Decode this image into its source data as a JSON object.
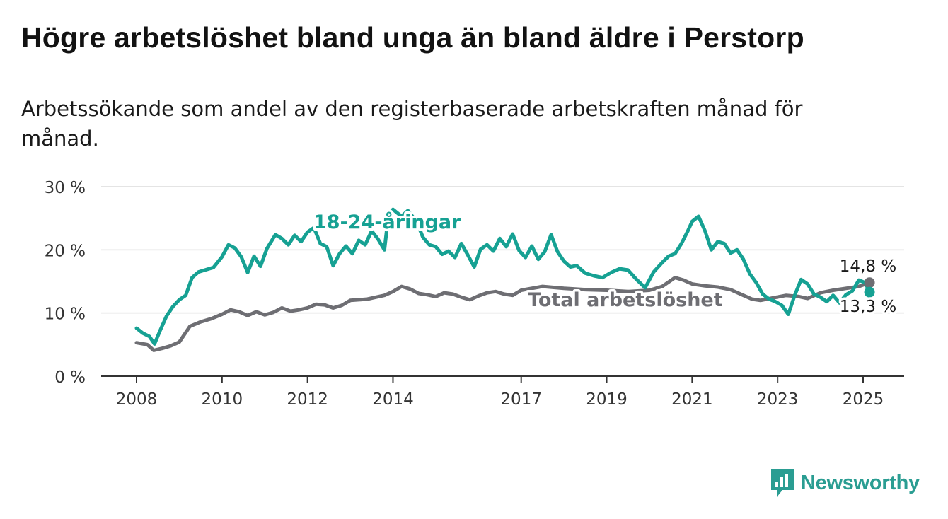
{
  "title": "Högre arbetslöshet bland unga än bland äldre i Perstorp",
  "subtitle": "Arbetssökande som andel av den registerbaserade arbetskraften månad för månad.",
  "brand": {
    "name": "Newsworthy",
    "color": "#2a9d92",
    "icon": "bar-chart-icon"
  },
  "chart_data": {
    "type": "line",
    "ylim": [
      0,
      30
    ],
    "y_ticks": [
      0,
      10,
      20,
      30
    ],
    "y_tick_labels": [
      "0 %",
      "10 %",
      "20 %",
      "30 %"
    ],
    "x_ticks": [
      2008,
      2010,
      2012,
      2014,
      2017,
      2019,
      2021,
      2023,
      2025
    ],
    "x_tick_labels": [
      "2008",
      "2010",
      "2012",
      "2014",
      "2017",
      "2019",
      "2021",
      "2023",
      "2025"
    ],
    "grid": true,
    "legend": "direct labels on lines",
    "series": [
      {
        "name": "Total arbetslöshet",
        "color": "#6e6e73",
        "last_label": "14,8 %",
        "points": [
          [
            2008.0,
            5.3
          ],
          [
            2008.25,
            5.0
          ],
          [
            2008.4,
            4.1
          ],
          [
            2008.6,
            4.4
          ],
          [
            2008.8,
            4.8
          ],
          [
            2009.0,
            5.4
          ],
          [
            2009.25,
            7.9
          ],
          [
            2009.5,
            8.6
          ],
          [
            2009.75,
            9.1
          ],
          [
            2010.0,
            9.8
          ],
          [
            2010.2,
            10.5
          ],
          [
            2010.4,
            10.2
          ],
          [
            2010.6,
            9.6
          ],
          [
            2010.8,
            10.2
          ],
          [
            2011.0,
            9.7
          ],
          [
            2011.2,
            10.1
          ],
          [
            2011.4,
            10.8
          ],
          [
            2011.6,
            10.3
          ],
          [
            2011.8,
            10.5
          ],
          [
            2012.0,
            10.8
          ],
          [
            2012.2,
            11.4
          ],
          [
            2012.4,
            11.3
          ],
          [
            2012.6,
            10.8
          ],
          [
            2012.8,
            11.2
          ],
          [
            2013.0,
            12.0
          ],
          [
            2013.2,
            12.1
          ],
          [
            2013.4,
            12.2
          ],
          [
            2013.6,
            12.5
          ],
          [
            2013.8,
            12.8
          ],
          [
            2014.0,
            13.4
          ],
          [
            2014.2,
            14.2
          ],
          [
            2014.4,
            13.8
          ],
          [
            2014.6,
            13.1
          ],
          [
            2014.8,
            12.9
          ],
          [
            2015.0,
            12.6
          ],
          [
            2015.2,
            13.2
          ],
          [
            2015.4,
            13.0
          ],
          [
            2015.6,
            12.5
          ],
          [
            2015.8,
            12.1
          ],
          [
            2016.0,
            12.7
          ],
          [
            2016.2,
            13.2
          ],
          [
            2016.4,
            13.4
          ],
          [
            2016.6,
            13.0
          ],
          [
            2016.8,
            12.8
          ],
          [
            2017.0,
            13.6
          ],
          [
            2017.5,
            14.2
          ],
          [
            2018.0,
            13.9
          ],
          [
            2018.5,
            13.7
          ],
          [
            2019.0,
            13.6
          ],
          [
            2019.5,
            13.4
          ],
          [
            2020.0,
            13.6
          ],
          [
            2020.3,
            14.2
          ],
          [
            2020.6,
            15.6
          ],
          [
            2020.8,
            15.2
          ],
          [
            2021.0,
            14.6
          ],
          [
            2021.3,
            14.3
          ],
          [
            2021.6,
            14.1
          ],
          [
            2021.9,
            13.7
          ],
          [
            2022.2,
            12.8
          ],
          [
            2022.4,
            12.2
          ],
          [
            2022.6,
            12.0
          ],
          [
            2022.9,
            12.4
          ],
          [
            2023.2,
            12.8
          ],
          [
            2023.5,
            12.6
          ],
          [
            2023.7,
            12.3
          ],
          [
            2024.0,
            13.2
          ],
          [
            2024.3,
            13.6
          ],
          [
            2024.6,
            13.9
          ],
          [
            2024.9,
            14.2
          ],
          [
            2025.15,
            14.8
          ]
        ]
      },
      {
        "name": "18-24-åringar",
        "color": "#16a193",
        "last_label": "13,3 %",
        "points": [
          [
            2008.0,
            7.6
          ],
          [
            2008.15,
            6.8
          ],
          [
            2008.3,
            6.3
          ],
          [
            2008.42,
            5.1
          ],
          [
            2008.55,
            7.2
          ],
          [
            2008.7,
            9.5
          ],
          [
            2008.85,
            11.0
          ],
          [
            2009.0,
            12.1
          ],
          [
            2009.15,
            12.8
          ],
          [
            2009.3,
            15.6
          ],
          [
            2009.45,
            16.5
          ],
          [
            2009.6,
            16.8
          ],
          [
            2009.8,
            17.2
          ],
          [
            2010.0,
            18.9
          ],
          [
            2010.15,
            20.8
          ],
          [
            2010.3,
            20.3
          ],
          [
            2010.45,
            18.9
          ],
          [
            2010.6,
            16.4
          ],
          [
            2010.75,
            19.0
          ],
          [
            2010.9,
            17.4
          ],
          [
            2011.05,
            20.2
          ],
          [
            2011.25,
            22.4
          ],
          [
            2011.4,
            21.8
          ],
          [
            2011.55,
            20.8
          ],
          [
            2011.7,
            22.3
          ],
          [
            2011.85,
            21.3
          ],
          [
            2012.0,
            22.8
          ],
          [
            2012.15,
            23.5
          ],
          [
            2012.3,
            21.0
          ],
          [
            2012.45,
            20.5
          ],
          [
            2012.6,
            17.5
          ],
          [
            2012.75,
            19.4
          ],
          [
            2012.9,
            20.6
          ],
          [
            2013.05,
            19.4
          ],
          [
            2013.2,
            21.5
          ],
          [
            2013.35,
            20.8
          ],
          [
            2013.5,
            23.0
          ],
          [
            2013.65,
            21.7
          ],
          [
            2013.8,
            20.0
          ],
          [
            2013.9,
            25.8
          ],
          [
            2014.0,
            26.4
          ],
          [
            2014.2,
            25.3
          ],
          [
            2014.35,
            26.2
          ],
          [
            2014.55,
            24.5
          ],
          [
            2014.7,
            22.0
          ],
          [
            2014.85,
            20.8
          ],
          [
            2015.0,
            20.5
          ],
          [
            2015.15,
            19.3
          ],
          [
            2015.3,
            19.8
          ],
          [
            2015.45,
            18.8
          ],
          [
            2015.6,
            21.0
          ],
          [
            2015.75,
            19.2
          ],
          [
            2015.9,
            17.3
          ],
          [
            2016.05,
            20.1
          ],
          [
            2016.2,
            20.8
          ],
          [
            2016.35,
            19.8
          ],
          [
            2016.5,
            21.8
          ],
          [
            2016.65,
            20.5
          ],
          [
            2016.8,
            22.5
          ],
          [
            2016.95,
            19.9
          ],
          [
            2017.1,
            18.8
          ],
          [
            2017.25,
            20.6
          ],
          [
            2017.4,
            18.5
          ],
          [
            2017.55,
            19.7
          ],
          [
            2017.7,
            22.4
          ],
          [
            2017.85,
            19.7
          ],
          [
            2018.0,
            18.2
          ],
          [
            2018.15,
            17.3
          ],
          [
            2018.3,
            17.5
          ],
          [
            2018.5,
            16.3
          ],
          [
            2018.7,
            15.9
          ],
          [
            2018.9,
            15.6
          ],
          [
            2019.1,
            16.4
          ],
          [
            2019.3,
            17.0
          ],
          [
            2019.5,
            16.8
          ],
          [
            2019.7,
            15.3
          ],
          [
            2019.9,
            14.0
          ],
          [
            2020.1,
            16.5
          ],
          [
            2020.3,
            18.0
          ],
          [
            2020.45,
            19.0
          ],
          [
            2020.6,
            19.4
          ],
          [
            2020.75,
            21.0
          ],
          [
            2020.9,
            23.0
          ],
          [
            2021.0,
            24.5
          ],
          [
            2021.15,
            25.3
          ],
          [
            2021.3,
            23.0
          ],
          [
            2021.45,
            20.0
          ],
          [
            2021.6,
            21.3
          ],
          [
            2021.75,
            21.0
          ],
          [
            2021.9,
            19.5
          ],
          [
            2022.05,
            20.0
          ],
          [
            2022.2,
            18.5
          ],
          [
            2022.35,
            16.2
          ],
          [
            2022.5,
            14.8
          ],
          [
            2022.65,
            13.0
          ],
          [
            2022.8,
            12.2
          ],
          [
            2022.95,
            11.8
          ],
          [
            2023.1,
            11.2
          ],
          [
            2023.25,
            9.8
          ],
          [
            2023.4,
            12.8
          ],
          [
            2023.55,
            15.3
          ],
          [
            2023.7,
            14.6
          ],
          [
            2023.85,
            13.0
          ],
          [
            2024.0,
            12.5
          ],
          [
            2024.15,
            11.8
          ],
          [
            2024.3,
            12.8
          ],
          [
            2024.45,
            11.6
          ],
          [
            2024.6,
            12.9
          ],
          [
            2024.75,
            13.5
          ],
          [
            2024.9,
            15.2
          ],
          [
            2025.05,
            14.8
          ],
          [
            2025.15,
            13.3
          ]
        ]
      }
    ]
  }
}
